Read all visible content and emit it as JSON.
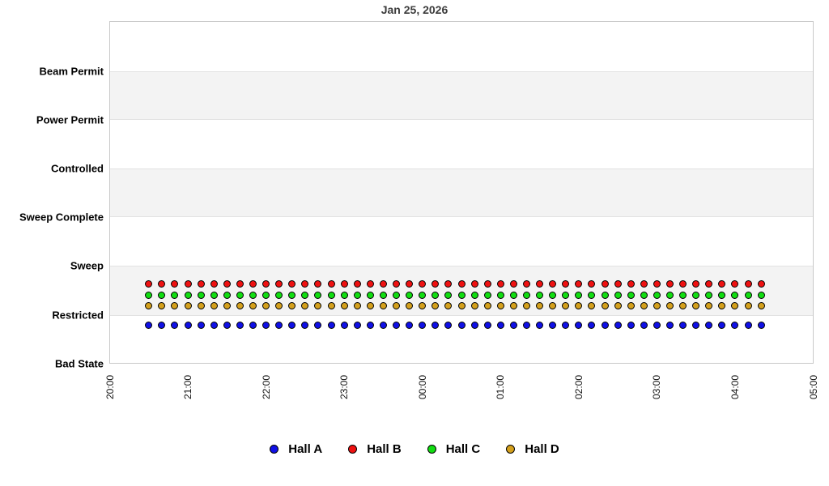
{
  "chart_data": {
    "type": "scatter",
    "title": "Jan 25, 2026",
    "x_ticks": [
      "20:00",
      "21:00",
      "22:00",
      "23:00",
      "00:00",
      "01:00",
      "02:00",
      "03:00",
      "04:00",
      "05:00"
    ],
    "x_range": [
      "20:00",
      "05:00"
    ],
    "y_categories": [
      "Beam Permit",
      "Power Permit",
      "Controlled",
      "Sweep Complete",
      "Sweep",
      "Restricted",
      "Bad State"
    ],
    "grid": "alternating-horizontal-bands",
    "legend_position": "bottom",
    "x_times": [
      "20:30",
      "20:40",
      "20:50",
      "21:00",
      "21:10",
      "21:20",
      "21:30",
      "21:40",
      "21:50",
      "22:00",
      "22:10",
      "22:20",
      "22:30",
      "22:40",
      "22:50",
      "23:00",
      "23:10",
      "23:20",
      "23:30",
      "23:40",
      "23:50",
      "00:00",
      "00:10",
      "00:20",
      "00:30",
      "00:40",
      "00:50",
      "01:00",
      "01:10",
      "01:20",
      "01:30",
      "01:40",
      "01:50",
      "02:00",
      "02:10",
      "02:20",
      "02:30",
      "02:40",
      "02:50",
      "03:00",
      "03:10",
      "03:20",
      "03:30",
      "03:40",
      "03:50",
      "04:00",
      "04:10",
      "04:20"
    ],
    "series": [
      {
        "name": "Hall A",
        "color": "#1010e6",
        "marker": "circle",
        "state": "Restricted",
        "level_offset": -0.21
      },
      {
        "name": "Hall B",
        "color": "#ee1111",
        "marker": "circle",
        "state": "Restricted",
        "level_offset": 0.63
      },
      {
        "name": "Hall C",
        "color": "#11dd11",
        "marker": "circle",
        "state": "Restricted",
        "level_offset": 0.41
      },
      {
        "name": "Hall D",
        "color": "#d4a01c",
        "marker": "circle",
        "state": "Restricted",
        "level_offset": 0.19
      }
    ],
    "legend": [
      "Hall A",
      "Hall B",
      "Hall C",
      "Hall D"
    ]
  },
  "colors": {
    "band_fill": "#f3f3f3",
    "band_edge": "#e2e2e2",
    "plot_border": "#c9c9c9",
    "title_text": "#3c3c3c",
    "axis_text": "#000000"
  }
}
